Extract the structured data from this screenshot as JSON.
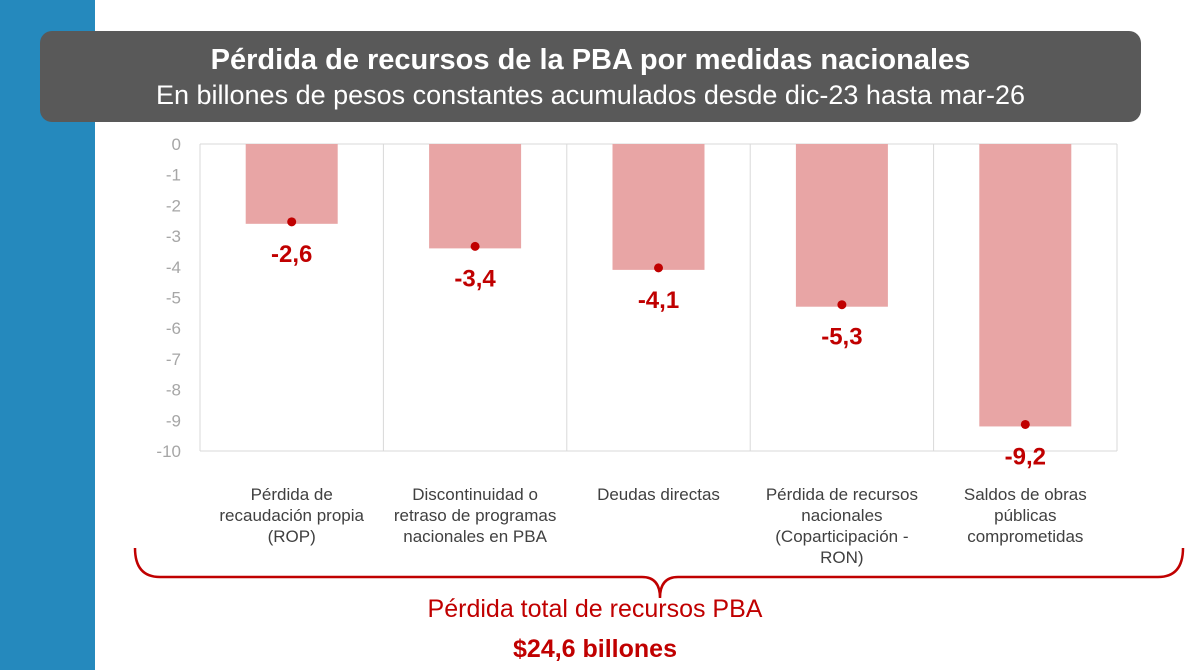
{
  "title": "Pérdida de recursos de la PBA por medidas nacionales",
  "subtitle": "En billones de pesos constantes acumulados desde dic-23 hasta mar-26",
  "colors": {
    "side_band": "#2589BD",
    "title_bg": "#595959",
    "bar": "#E8A5A5",
    "accent": "#C00000",
    "grid": "#D9D9D9",
    "tick_text": "#A6A6A6"
  },
  "chart_data": {
    "type": "bar",
    "title": "Pérdida de recursos de la PBA por medidas nacionales",
    "subtitle": "En billones de pesos constantes acumulados desde dic-23 hasta mar-26",
    "categories": [
      "Pérdida de recaudación propia (ROP)",
      "Discontinuidad o retraso de programas nacionales en PBA",
      "Deudas directas",
      "Pérdida de recursos nacionales (Coparticipación - RON)",
      "Saldos de obras públicas comprometidas"
    ],
    "values": [
      -2.6,
      -3.4,
      -4.1,
      -5.3,
      -9.2
    ],
    "data_labels": [
      "-2,6",
      "-3,4",
      "-4,1",
      "-5,3",
      "-9,2"
    ],
    "ylim": [
      -10,
      0
    ],
    "y_ticks": [
      "0",
      "-1",
      "-2",
      "-3",
      "-4",
      "-5",
      "-6",
      "-7",
      "-8",
      "-9",
      "-10"
    ],
    "grid": "vertical separators",
    "legend": "none"
  },
  "category_label_lines": [
    [
      "Pérdida de",
      "recaudación propia",
      "(ROP)"
    ],
    [
      "Discontinuidad o",
      "retraso de programas",
      "nacionales en PBA"
    ],
    [
      "Deudas directas"
    ],
    [
      "Pérdida de recursos",
      "nacionales",
      "(Coparticipación -",
      "RON)"
    ],
    [
      "Saldos de obras",
      "públicas",
      "comprometidas"
    ]
  ],
  "total": {
    "label": "Pérdida total de recursos PBA",
    "value": "$24,6 billones"
  }
}
